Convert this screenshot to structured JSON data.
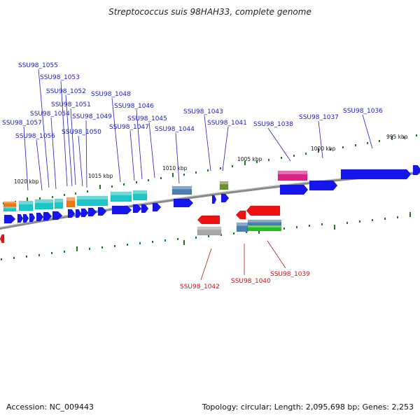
{
  "title": "Streptococcus suis 98HAH33, complete genome",
  "footer": {
    "accession": "Accession: NC_009443",
    "topology": "Topology: circular; Length: 2,095,698 bp; Genes: 2,253"
  },
  "colors": {
    "forward_cds": "#1515ee",
    "reverse_cds": "#ee1111",
    "cyan": "#1ec7c7",
    "orange": "#f07a10",
    "steel_blue": "#4a7fb0",
    "olive": "#6f9030",
    "magenta": "#e0208a",
    "gray": "#a8a8a8",
    "green": "#22c022",
    "backbone": "#8a8a8a",
    "tick": "#1f7a1f",
    "top_label": "#1a1acc",
    "bottom_label": "#cc1111"
  },
  "kbp_labels": [
    "1020 kbp",
    "1015 kbp",
    "1010 kbp",
    "1005 kbp",
    "1000 kbp",
    "995 kbp"
  ],
  "top_labels": [
    "SSU98_1055",
    "SSU98_1053",
    "SSU98_1052",
    "SSU98_1051",
    "SSU98_1054",
    "SSU98_1049",
    "SSU98_1057",
    "SSU98_1056",
    "SSU98_1050",
    "SSU98_1048",
    "SSU98_1046",
    "SSU98_1045",
    "SSU98_1047",
    "SSU98_1044",
    "SSU98_1043",
    "SSU98_1041",
    "SSU98_1038",
    "SSU98_1037",
    "SSU98_1036"
  ],
  "bottom_labels": [
    "SSU98_1042",
    "SSU98_1040",
    "SSU98_1039"
  ]
}
